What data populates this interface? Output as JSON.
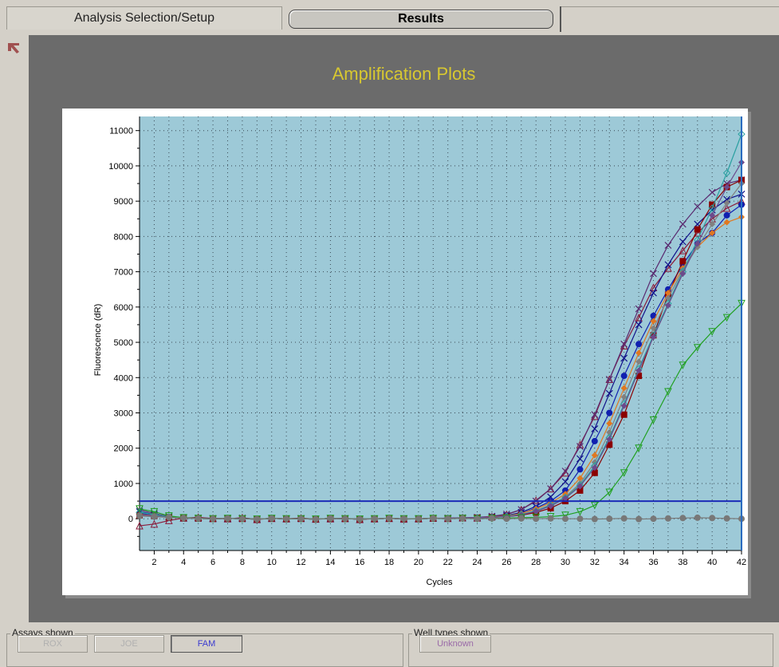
{
  "tabs": {
    "setup_label": "Analysis Selection/Setup",
    "results_label": "Results"
  },
  "plot": {
    "title": "Amplification Plots"
  },
  "bottom": {
    "assays_label": "Assays shown",
    "assay_buttons": [
      "ROX",
      "JOE",
      "FAM"
    ],
    "welltypes_label": "Well types shown",
    "welltype_buttons": [
      "Unknown"
    ]
  },
  "chart_data": {
    "type": "line",
    "title": "Amplification Plots",
    "xlabel": "Cycles",
    "ylabel": "Fluorescence (dR)",
    "xlim": [
      1,
      42
    ],
    "ylim": [
      -900,
      11400
    ],
    "xticks": [
      2,
      4,
      6,
      8,
      10,
      12,
      14,
      16,
      18,
      20,
      22,
      24,
      26,
      28,
      30,
      32,
      34,
      36,
      38,
      40,
      42
    ],
    "yticks": [
      0,
      1000,
      2000,
      3000,
      4000,
      5000,
      6000,
      7000,
      8000,
      9000,
      10000,
      11000
    ],
    "threshold": 500,
    "grid": true,
    "background_color": "#9dc9d7",
    "threshold_color": "#1a2bb8",
    "series": [
      {
        "color": "#8b1a3a",
        "marker": "triangle-up",
        "values": [
          -200,
          -150,
          -50,
          20,
          40,
          10,
          0,
          30,
          -20,
          10,
          0,
          20,
          -10,
          0,
          10,
          -20,
          0,
          10,
          -10,
          0,
          20,
          10,
          30,
          20,
          60,
          120,
          260,
          520,
          850,
          1300,
          2100,
          2900,
          3950,
          4900,
          5700,
          6550,
          7100,
          7600,
          8100,
          8500,
          8800,
          9000
        ]
      },
      {
        "color": "#5a2a70",
        "marker": "x",
        "values": [
          250,
          150,
          60,
          30,
          20,
          10,
          0,
          20,
          -10,
          10,
          0,
          10,
          -10,
          0,
          10,
          -10,
          0,
          10,
          0,
          0,
          10,
          20,
          30,
          40,
          70,
          130,
          260,
          500,
          850,
          1350,
          2050,
          2950,
          3950,
          4950,
          5950,
          6950,
          7750,
          8350,
          8850,
          9250,
          9500,
          9600
        ]
      },
      {
        "color": "#10108a",
        "marker": "x",
        "values": [
          200,
          120,
          50,
          20,
          10,
          0,
          10,
          0,
          -10,
          10,
          0,
          0,
          -10,
          10,
          0,
          -10,
          0,
          10,
          0,
          0,
          10,
          10,
          20,
          30,
          50,
          90,
          180,
          350,
          620,
          1050,
          1700,
          2550,
          3550,
          4550,
          5500,
          6400,
          7200,
          7850,
          8350,
          8750,
          9050,
          9200
        ]
      },
      {
        "color": "#1020b0",
        "marker": "circle",
        "values": [
          150,
          100,
          50,
          20,
          10,
          0,
          10,
          0,
          -10,
          10,
          0,
          0,
          -10,
          10,
          0,
          -10,
          0,
          10,
          0,
          0,
          10,
          10,
          20,
          30,
          50,
          80,
          150,
          300,
          500,
          800,
          1400,
          2200,
          3000,
          4050,
          4950,
          5750,
          6500,
          7200,
          7800,
          8100,
          8600,
          8900
        ]
      },
      {
        "color": "#8b0000",
        "marker": "square",
        "values": [
          100,
          80,
          40,
          20,
          10,
          0,
          10,
          0,
          -10,
          10,
          0,
          0,
          -10,
          10,
          0,
          -10,
          0,
          10,
          0,
          0,
          10,
          10,
          20,
          30,
          40,
          60,
          100,
          180,
          300,
          500,
          800,
          1300,
          2100,
          2950,
          4050,
          5200,
          6350,
          7300,
          8200,
          8900,
          9400,
          9600
        ]
      },
      {
        "color": "#e07820",
        "marker": "diamond",
        "values": [
          120,
          90,
          40,
          20,
          10,
          0,
          10,
          0,
          -10,
          10,
          0,
          0,
          -10,
          10,
          0,
          -10,
          0,
          10,
          0,
          0,
          10,
          10,
          20,
          30,
          50,
          80,
          150,
          280,
          450,
          700,
          1150,
          1800,
          2700,
          3700,
          4700,
          5600,
          6400,
          7100,
          7700,
          8100,
          8400,
          8550
        ]
      },
      {
        "color": "#808080",
        "marker": "diamond",
        "values": [
          100,
          70,
          40,
          20,
          10,
          0,
          10,
          0,
          -10,
          10,
          0,
          0,
          -10,
          10,
          0,
          -10,
          0,
          10,
          0,
          0,
          10,
          10,
          20,
          30,
          40,
          70,
          120,
          230,
          400,
          620,
          1000,
          1600,
          2450,
          3450,
          4450,
          5400,
          6250,
          7050,
          7700,
          8350,
          8950,
          9500
        ]
      },
      {
        "color": "#2aa0a0",
        "marker": "diamond-open",
        "values": [
          180,
          120,
          50,
          20,
          10,
          0,
          10,
          0,
          -10,
          10,
          0,
          0,
          -10,
          10,
          0,
          -10,
          0,
          10,
          0,
          0,
          10,
          10,
          20,
          30,
          40,
          70,
          120,
          220,
          380,
          600,
          950,
          1500,
          2300,
          3250,
          4250,
          5200,
          6100,
          7000,
          7900,
          8800,
          9800,
          10900
        ]
      },
      {
        "color": "#6c4a8c",
        "marker": "diamond",
        "values": [
          110,
          80,
          40,
          20,
          10,
          0,
          10,
          0,
          -10,
          10,
          0,
          0,
          -10,
          10,
          0,
          -10,
          0,
          10,
          0,
          0,
          10,
          10,
          20,
          30,
          40,
          60,
          110,
          210,
          360,
          580,
          920,
          1450,
          2250,
          3200,
          4200,
          5150,
          6050,
          6950,
          7800,
          8600,
          9400,
          10100
        ]
      },
      {
        "color": "#20a020",
        "marker": "triangle-down",
        "values": [
          280,
          200,
          80,
          30,
          10,
          0,
          10,
          0,
          -10,
          10,
          0,
          0,
          -10,
          10,
          0,
          -10,
          0,
          10,
          0,
          0,
          10,
          0,
          10,
          0,
          10,
          20,
          30,
          40,
          60,
          100,
          200,
          380,
          750,
          1300,
          2000,
          2800,
          3600,
          4350,
          4850,
          5300,
          5700,
          6100
        ]
      },
      {
        "color": "#787878",
        "marker": "circle",
        "values": [
          80,
          60,
          40,
          20,
          10,
          0,
          10,
          0,
          -10,
          10,
          0,
          0,
          -10,
          10,
          0,
          -10,
          0,
          10,
          0,
          0,
          10,
          0,
          10,
          0,
          10,
          0,
          10,
          0,
          10,
          0,
          0,
          -10,
          0,
          10,
          -10,
          0,
          10,
          20,
          30,
          20,
          10,
          0
        ]
      }
    ]
  }
}
